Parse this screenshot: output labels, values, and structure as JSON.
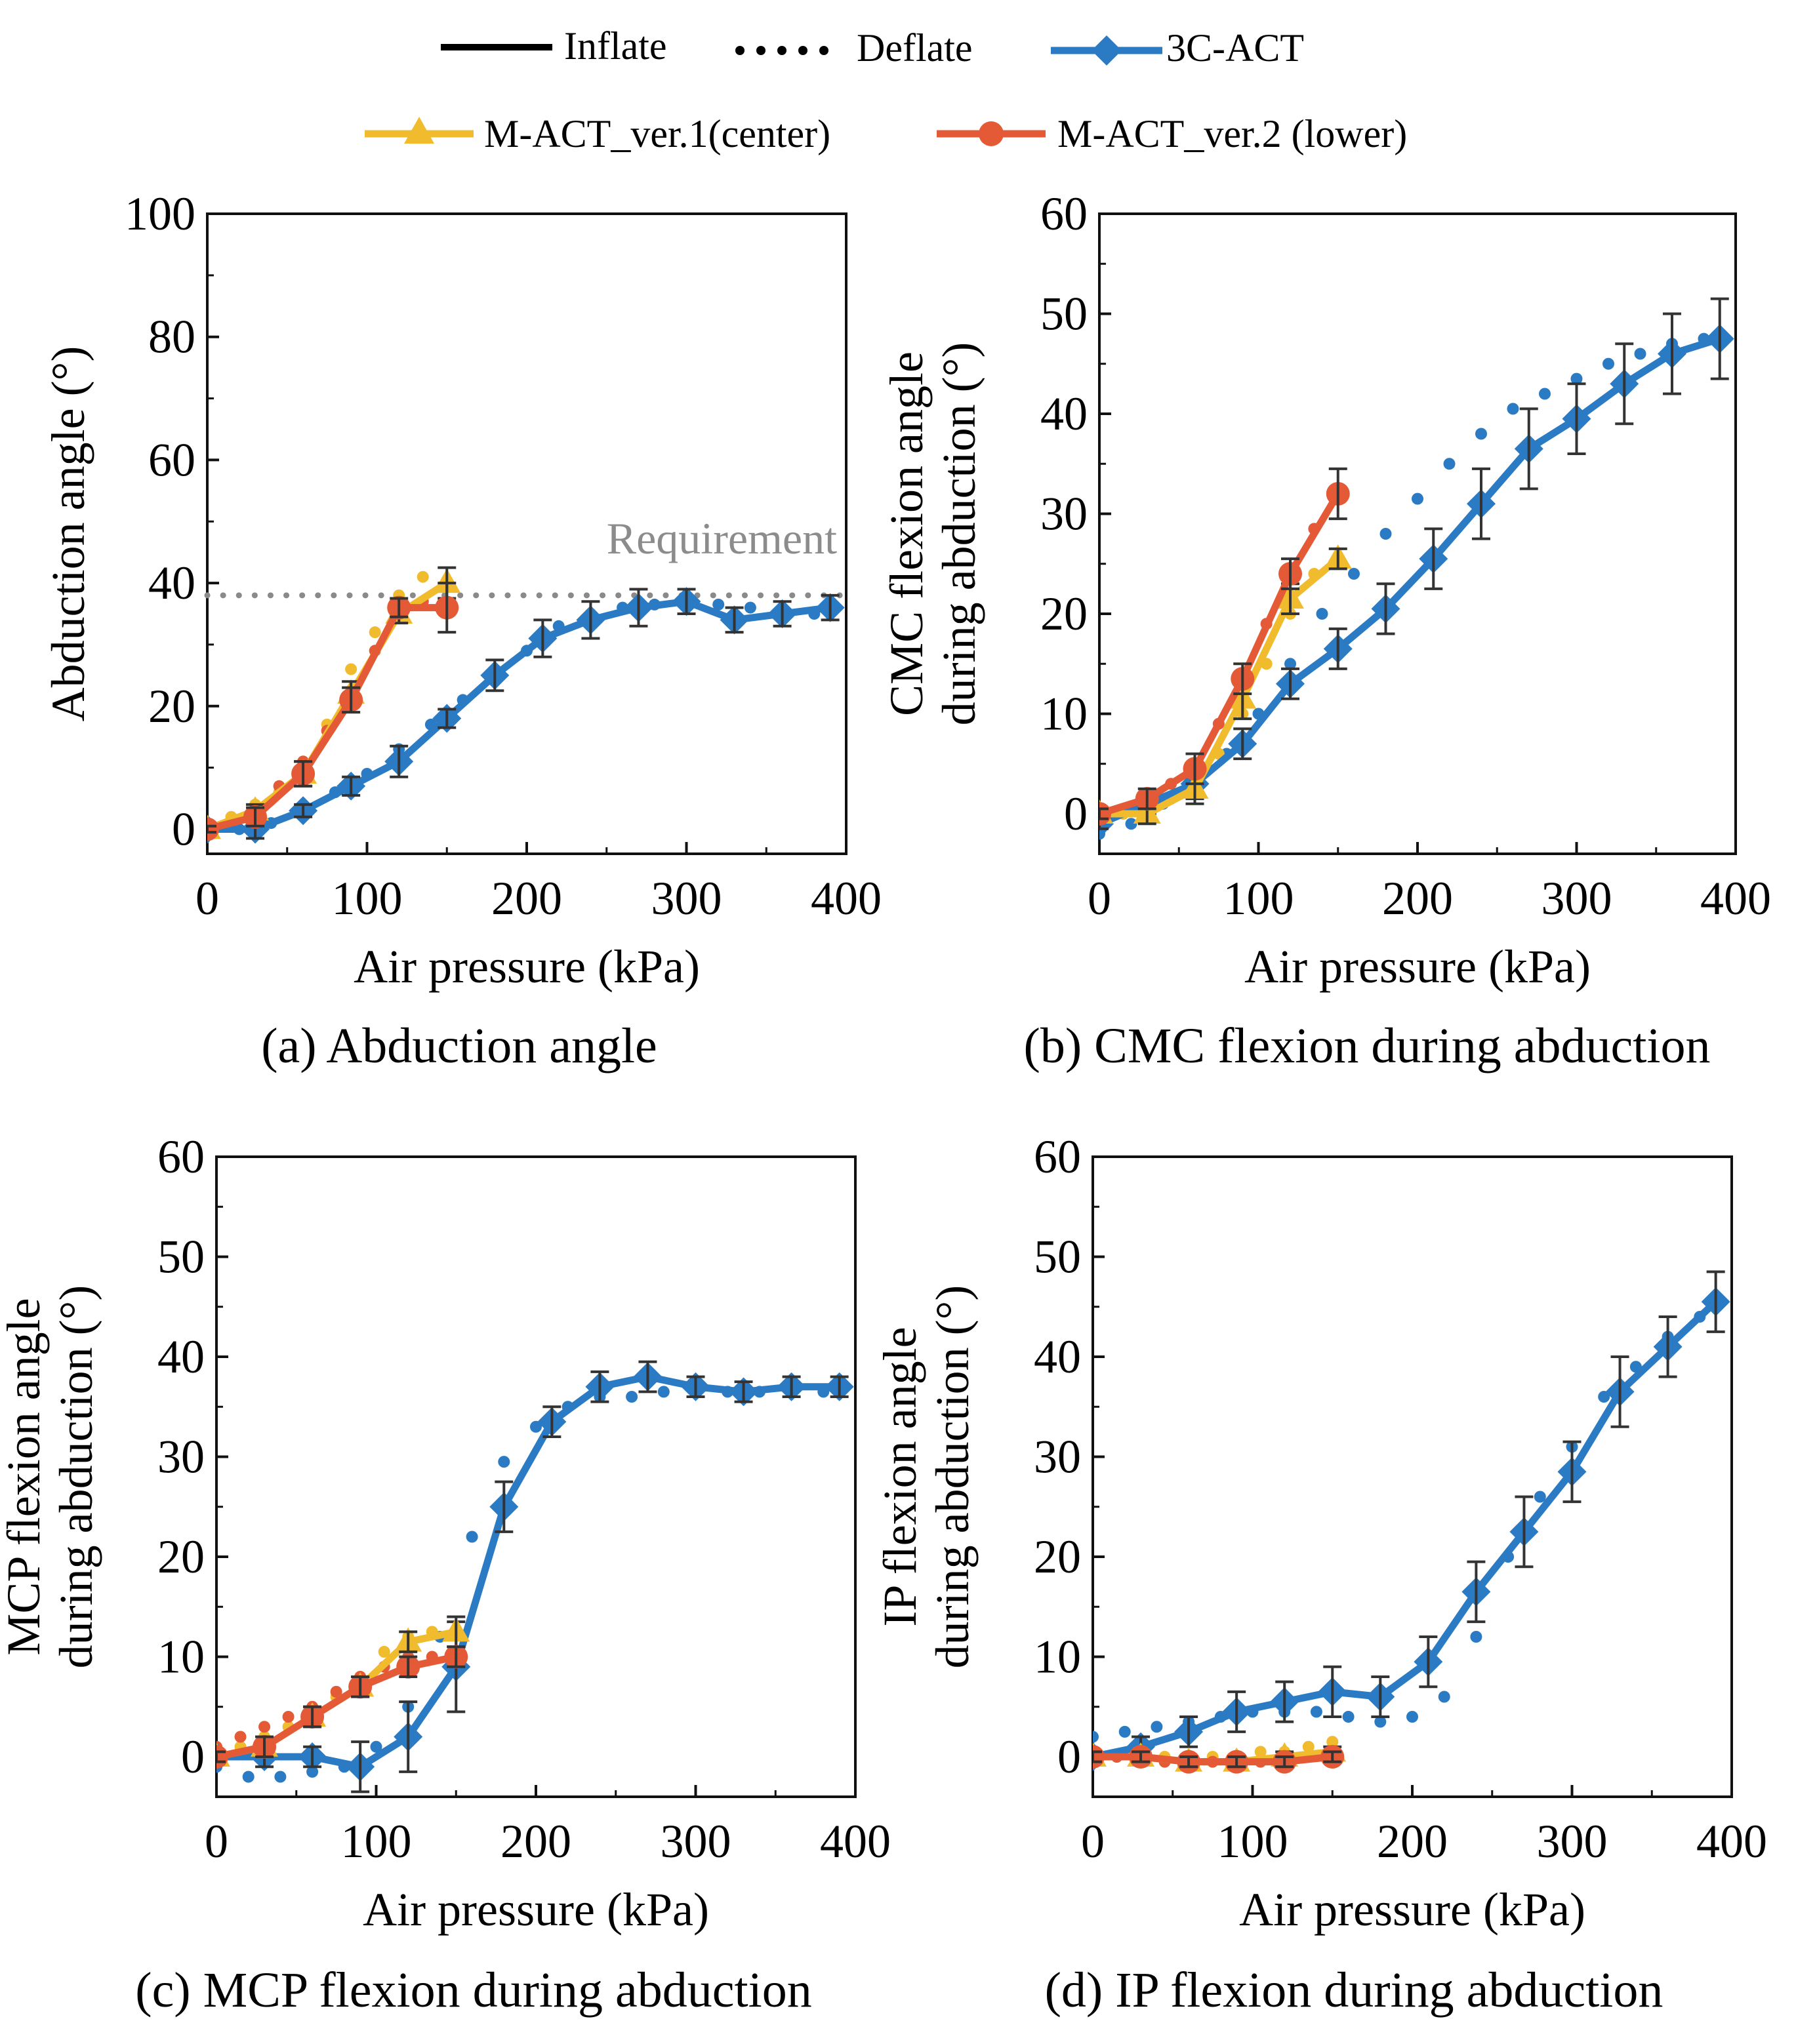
{
  "legend": {
    "row1": [
      {
        "label": "Inflate",
        "style": "solid",
        "color": "#000000"
      },
      {
        "label": "Deflate",
        "style": "dotted",
        "color": "#000000"
      },
      {
        "label": "3C-ACT",
        "style": "solid-marker",
        "marker": "diamond",
        "color": "#2a7bc4"
      }
    ],
    "row2": [
      {
        "label": "M-ACT_ver.1(center)",
        "style": "solid-marker",
        "marker": "triangle",
        "color": "#f0bb2c"
      },
      {
        "label": "M-ACT_ver.2 (lower)",
        "style": "solid-marker",
        "marker": "circle",
        "color": "#e55a36"
      }
    ]
  },
  "colors": {
    "act3c": "#2a7bc4",
    "mact1": "#f0bb2c",
    "mact2": "#e55a36",
    "requirement": "#8a8a8a",
    "errorbar": "#333333"
  },
  "chart_data": [
    {
      "id": "a",
      "type": "line",
      "caption": "(a) Abduction angle",
      "xlabel": "Air pressure (kPa)",
      "ylabel": [
        "Abduction angle (°)"
      ],
      "xlim": [
        0,
        400
      ],
      "ylim": [
        -4,
        100
      ],
      "xticks": [
        0,
        100,
        200,
        300,
        400
      ],
      "yticks": [
        0,
        20,
        40,
        60,
        80,
        100
      ],
      "reference_line": {
        "y": 38,
        "label": "Requirement"
      },
      "series": [
        {
          "name": "3C-ACT",
          "phase": "Inflate",
          "x": [
            0,
            30,
            60,
            90,
            120,
            150,
            180,
            210,
            240,
            270,
            300,
            330,
            360,
            390
          ],
          "y": [
            0,
            0,
            3,
            7,
            11,
            18,
            25,
            31,
            34,
            36,
            37,
            34,
            35,
            36
          ],
          "err": [
            0.5,
            1.5,
            1,
            1.5,
            2.5,
            1.5,
            2.5,
            3,
            3,
            3,
            2,
            2,
            2,
            2
          ]
        },
        {
          "name": "3C-ACT",
          "phase": "Deflate",
          "x": [
            0,
            20,
            40,
            60,
            80,
            100,
            120,
            140,
            160,
            180,
            200,
            220,
            240,
            260,
            280,
            300,
            320,
            340,
            360,
            380,
            390
          ],
          "y": [
            -1,
            0,
            1,
            3,
            6,
            9,
            13,
            17,
            21,
            25,
            29,
            33,
            35,
            36,
            36.5,
            37,
            36.5,
            36,
            35.5,
            35,
            35
          ]
        },
        {
          "name": "M-ACT_ver.1(center)",
          "phase": "Inflate",
          "x": [
            0,
            30,
            60,
            90,
            120,
            150
          ],
          "y": [
            0,
            3,
            9,
            22,
            35,
            40
          ],
          "err": [
            0.5,
            1,
            2,
            2,
            1.5,
            2.5
          ]
        },
        {
          "name": "M-ACT_ver.1(center)",
          "phase": "Deflate",
          "x": [
            0,
            15,
            30,
            45,
            60,
            75,
            90,
            105,
            120,
            135,
            150
          ],
          "y": [
            0,
            2,
            4,
            6,
            10,
            17,
            26,
            32,
            38,
            41,
            40
          ]
        },
        {
          "name": "M-ACT_ver.2 (lower)",
          "phase": "Inflate",
          "x": [
            0,
            30,
            60,
            90,
            120,
            150
          ],
          "y": [
            0,
            2,
            9,
            21,
            36,
            36
          ],
          "err": [
            0.5,
            1.5,
            2,
            2,
            1.5,
            4
          ]
        },
        {
          "name": "M-ACT_ver.2 (lower)",
          "phase": "Deflate",
          "x": [
            0,
            15,
            30,
            45,
            60,
            75,
            90,
            105,
            120,
            135,
            150
          ],
          "y": [
            0,
            1,
            3,
            7,
            11,
            16,
            22,
            29,
            35,
            37,
            36
          ]
        }
      ]
    },
    {
      "id": "b",
      "type": "line",
      "caption": "(b) CMC flexion during abduction",
      "xlabel": "Air pressure (kPa)",
      "ylabel": [
        "CMC flexion angle",
        "during abduction (°)"
      ],
      "xlim": [
        0,
        400
      ],
      "ylim": [
        -4,
        60
      ],
      "xticks": [
        0,
        100,
        200,
        300,
        400
      ],
      "yticks": [
        0,
        10,
        20,
        30,
        40,
        50,
        60
      ],
      "series": [
        {
          "name": "3C-ACT",
          "phase": "Inflate",
          "x": [
            0,
            30,
            60,
            90,
            120,
            150,
            180,
            210,
            240,
            270,
            300,
            330,
            360,
            390
          ],
          "y": [
            -1,
            1,
            3,
            7,
            13,
            16.5,
            20.5,
            25.5,
            31,
            36.5,
            39.5,
            43,
            46,
            47.5
          ],
          "err": [
            0.5,
            1,
            1.5,
            1.5,
            1.5,
            2,
            2.5,
            3,
            3.5,
            4,
            3.5,
            4,
            4,
            4
          ]
        },
        {
          "name": "3C-ACT",
          "phase": "Deflate",
          "x": [
            0,
            20,
            40,
            60,
            80,
            100,
            120,
            140,
            160,
            180,
            200,
            220,
            240,
            260,
            280,
            300,
            320,
            340,
            360,
            380,
            390
          ],
          "y": [
            -2,
            -1,
            1,
            3,
            6,
            10,
            15,
            20,
            24,
            28,
            31.5,
            35,
            38,
            40.5,
            42,
            43.5,
            45,
            46,
            47,
            47.5,
            47.5
          ]
        },
        {
          "name": "M-ACT_ver.1(center)",
          "phase": "Inflate",
          "x": [
            0,
            30,
            60,
            90,
            120,
            150
          ],
          "y": [
            0,
            0,
            2.5,
            11.5,
            21.5,
            25.5
          ],
          "err": [
            0.5,
            1,
            1.5,
            2,
            1.5,
            1
          ]
        },
        {
          "name": "M-ACT_ver.1(center)",
          "phase": "Deflate",
          "x": [
            0,
            15,
            30,
            45,
            60,
            75,
            90,
            105,
            120,
            135,
            150
          ],
          "y": [
            0,
            0,
            0.5,
            1.5,
            3,
            6,
            10,
            15,
            20,
            24,
            25.5
          ]
        },
        {
          "name": "M-ACT_ver.2 (lower)",
          "phase": "Inflate",
          "x": [
            0,
            30,
            60,
            90,
            120,
            150
          ],
          "y": [
            0,
            1.5,
            4.5,
            13.5,
            24,
            32
          ],
          "err": [
            0.5,
            1,
            1.5,
            1.5,
            1.5,
            2.5
          ]
        },
        {
          "name": "M-ACT_ver.2 (lower)",
          "phase": "Deflate",
          "x": [
            0,
            15,
            30,
            45,
            60,
            75,
            90,
            105,
            120,
            135,
            150
          ],
          "y": [
            0,
            0.5,
            1.5,
            3,
            5,
            9,
            14,
            19,
            24,
            28.5,
            32
          ]
        }
      ]
    },
    {
      "id": "c",
      "type": "line",
      "caption": "(c) MCP flexion during abduction",
      "xlabel": "Air pressure (kPa)",
      "ylabel": [
        "MCP flexion angle",
        "during abduction (°)"
      ],
      "xlim": [
        0,
        400
      ],
      "ylim": [
        -4,
        60
      ],
      "xticks": [
        0,
        100,
        200,
        300,
        400
      ],
      "yticks": [
        0,
        10,
        20,
        30,
        40,
        50,
        60
      ],
      "series": [
        {
          "name": "3C-ACT",
          "phase": "Inflate",
          "x": [
            0,
            30,
            60,
            90,
            120,
            150,
            180,
            210,
            240,
            270,
            300,
            330,
            360,
            390
          ],
          "y": [
            0,
            0,
            0,
            -1,
            2,
            9,
            25,
            33.5,
            37,
            38,
            37,
            36.5,
            37,
            37
          ],
          "err": [
            0.5,
            1,
            1,
            2.5,
            3.5,
            4.5,
            2.5,
            1.5,
            1.5,
            1.5,
            1,
            1,
            1,
            1
          ]
        },
        {
          "name": "3C-ACT",
          "phase": "Deflate",
          "x": [
            0,
            20,
            40,
            60,
            80,
            100,
            120,
            140,
            160,
            180,
            200,
            220,
            240,
            260,
            280,
            300,
            320,
            340,
            360,
            380,
            390
          ],
          "y": [
            -1,
            -2,
            -2,
            -1.5,
            -1,
            1,
            5,
            12,
            22,
            29.5,
            33,
            35,
            36,
            36,
            36.5,
            36.5,
            36.5,
            36.5,
            37,
            36.5,
            36.5
          ]
        },
        {
          "name": "M-ACT_ver.1(center)",
          "phase": "Inflate",
          "x": [
            0,
            30,
            60,
            90,
            120,
            150
          ],
          "y": [
            0,
            1,
            4,
            7,
            11.5,
            12.5
          ],
          "err": [
            0.5,
            1,
            1,
            1,
            1,
            1.5
          ]
        },
        {
          "name": "M-ACT_ver.1(center)",
          "phase": "Deflate",
          "x": [
            0,
            15,
            30,
            45,
            60,
            75,
            90,
            105,
            120,
            135,
            150
          ],
          "y": [
            0,
            1,
            2,
            3,
            4.5,
            6,
            8,
            10.5,
            12,
            12.5,
            12.5
          ]
        },
        {
          "name": "M-ACT_ver.2 (lower)",
          "phase": "Inflate",
          "x": [
            0,
            30,
            60,
            90,
            120,
            150
          ],
          "y": [
            0,
            1,
            4,
            7,
            9,
            10
          ],
          "err": [
            0.5,
            1,
            1,
            1,
            1,
            1
          ]
        },
        {
          "name": "M-ACT_ver.2 (lower)",
          "phase": "Deflate",
          "x": [
            0,
            15,
            30,
            45,
            60,
            75,
            90,
            105,
            120,
            135,
            150
          ],
          "y": [
            1,
            2,
            3,
            4,
            5,
            6.5,
            8,
            9,
            10,
            10,
            10
          ]
        }
      ]
    },
    {
      "id": "d",
      "type": "line",
      "caption": "(d) IP flexion during abduction",
      "xlabel": "Air pressure (kPa)",
      "ylabel": [
        "IP flexion angle",
        "during abduction (°)"
      ],
      "xlim": [
        0,
        400
      ],
      "ylim": [
        -4,
        60
      ],
      "xticks": [
        0,
        100,
        200,
        300,
        400
      ],
      "yticks": [
        0,
        10,
        20,
        30,
        40,
        50,
        60
      ],
      "series": [
        {
          "name": "3C-ACT",
          "phase": "Inflate",
          "x": [
            0,
            30,
            60,
            90,
            120,
            150,
            180,
            210,
            240,
            270,
            300,
            330,
            360,
            390
          ],
          "y": [
            0,
            1,
            2.5,
            4.5,
            5.5,
            6.5,
            6,
            9.5,
            16.5,
            22.5,
            28.5,
            36.5,
            41,
            45.5
          ],
          "err": [
            0.5,
            1,
            1.5,
            2,
            2,
            2.5,
            2,
            2.5,
            3,
            3.5,
            3,
            3.5,
            3,
            3
          ]
        },
        {
          "name": "3C-ACT",
          "phase": "Deflate",
          "x": [
            0,
            20,
            40,
            60,
            80,
            100,
            120,
            140,
            160,
            180,
            200,
            220,
            240,
            260,
            280,
            300,
            320,
            340,
            360,
            380,
            390
          ],
          "y": [
            2,
            2.5,
            3,
            3.5,
            4,
            4.5,
            4.5,
            4.5,
            4,
            3.5,
            4,
            6,
            12,
            20,
            26,
            31,
            36,
            39,
            42,
            44,
            45
          ]
        },
        {
          "name": "M-ACT_ver.1(center)",
          "phase": "Inflate",
          "x": [
            0,
            30,
            60,
            90,
            120,
            150
          ],
          "y": [
            0,
            0,
            -0.5,
            -0.5,
            0,
            0.5
          ],
          "err": [
            0.5,
            0.5,
            0.5,
            0.5,
            0.5,
            0.5
          ]
        },
        {
          "name": "M-ACT_ver.1(center)",
          "phase": "Deflate",
          "x": [
            0,
            15,
            30,
            45,
            60,
            75,
            90,
            105,
            120,
            135,
            150
          ],
          "y": [
            0,
            0,
            0,
            0,
            0,
            0,
            0,
            0.5,
            0.5,
            1,
            1.5
          ]
        },
        {
          "name": "M-ACT_ver.2 (lower)",
          "phase": "Inflate",
          "x": [
            0,
            30,
            60,
            90,
            120,
            150
          ],
          "y": [
            0,
            0,
            -0.5,
            -0.5,
            -0.5,
            0
          ],
          "err": [
            0.5,
            0.5,
            0.5,
            0.5,
            0.5,
            0.5
          ]
        },
        {
          "name": "M-ACT_ver.2 (lower)",
          "phase": "Deflate",
          "x": [
            0,
            15,
            30,
            45,
            60,
            75,
            90,
            105,
            120,
            135,
            150
          ],
          "y": [
            0,
            0,
            0,
            -0.5,
            -0.5,
            -0.5,
            -0.5,
            -0.5,
            -0.5,
            0,
            0
          ]
        }
      ]
    }
  ]
}
